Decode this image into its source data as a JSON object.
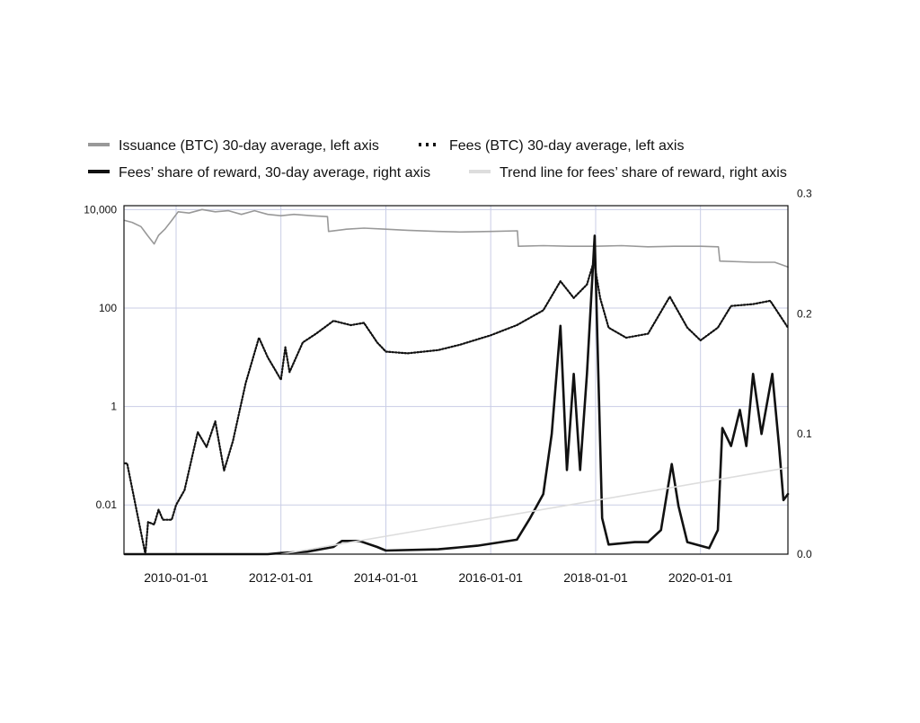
{
  "chart_data": {
    "type": "line",
    "legend": [
      {
        "label": "Issuance (BTC) 30-day average, left axis",
        "color": "#999999",
        "style": "solid"
      },
      {
        "label": "Fees (BTC) 30-day average, left axis",
        "color": "#111111",
        "style": "dotted"
      },
      {
        "label": "Fees’ share of reward, 30-day average, right axis",
        "color": "#111111",
        "style": "solid"
      },
      {
        "label": "Trend line for fees’ share of reward, right axis",
        "color": "#dddddd",
        "style": "solid"
      }
    ],
    "legend_position": "top",
    "x_ticks": [
      "2010-01-01",
      "2012-01-01",
      "2014-01-01",
      "2016-01-01",
      "2018-01-01",
      "2020-01-01"
    ],
    "xlim": [
      "2009-01-03",
      "2021-09-01"
    ],
    "left_axis": {
      "scale": "log",
      "ylim": [
        0.001,
        12000
      ],
      "ticks": [
        10000,
        100,
        1,
        0.01
      ],
      "tick_labels": [
        "10,000",
        "100",
        "1",
        "0.01"
      ]
    },
    "right_axis": {
      "scale": "linear",
      "ylim": [
        0,
        0.29
      ],
      "ticks": [
        0.0,
        0.1,
        0.2,
        0.3
      ],
      "tick_labels": [
        "0.0",
        "0.1",
        "0.2",
        "0.3"
      ]
    },
    "grid": true,
    "series": [
      {
        "name": "Issuance (BTC) 30-day average, left axis",
        "axis": "left",
        "color": "#999999",
        "style": "solid",
        "points": [
          [
            "2009-01-10",
            6000
          ],
          [
            "2009-03-01",
            5500
          ],
          [
            "2009-05-01",
            4500
          ],
          [
            "2009-06-15",
            3000
          ],
          [
            "2009-08-01",
            2000
          ],
          [
            "2009-09-01",
            3000
          ],
          [
            "2009-10-15",
            4000
          ],
          [
            "2009-12-01",
            6000
          ],
          [
            "2010-01-15",
            9000
          ],
          [
            "2010-04-01",
            8500
          ],
          [
            "2010-07-01",
            10000
          ],
          [
            "2010-10-01",
            9000
          ],
          [
            "2011-01-01",
            9500
          ],
          [
            "2011-04-01",
            8000
          ],
          [
            "2011-07-01",
            9500
          ],
          [
            "2011-10-01",
            8000
          ],
          [
            "2012-01-01",
            7500
          ],
          [
            "2012-04-01",
            8000
          ],
          [
            "2012-08-01",
            7500
          ],
          [
            "2012-11-20",
            7200
          ],
          [
            "2012-11-28",
            3600
          ],
          [
            "2013-04-01",
            4000
          ],
          [
            "2013-08-01",
            4200
          ],
          [
            "2014-01-01",
            4000
          ],
          [
            "2014-06-01",
            3800
          ],
          [
            "2015-01-01",
            3600
          ],
          [
            "2015-06-01",
            3500
          ],
          [
            "2016-01-01",
            3600
          ],
          [
            "2016-07-05",
            3700
          ],
          [
            "2016-07-12",
            1800
          ],
          [
            "2017-01-01",
            1850
          ],
          [
            "2017-07-01",
            1800
          ],
          [
            "2018-01-01",
            1800
          ],
          [
            "2018-07-01",
            1850
          ],
          [
            "2019-01-01",
            1750
          ],
          [
            "2019-07-01",
            1800
          ],
          [
            "2020-01-01",
            1800
          ],
          [
            "2020-05-05",
            1750
          ],
          [
            "2020-05-15",
            900
          ],
          [
            "2021-01-01",
            850
          ],
          [
            "2021-06-01",
            850
          ],
          [
            "2021-09-01",
            680
          ]
        ]
      },
      {
        "name": "Fees (BTC) 30-day average, left axis",
        "axis": "left",
        "color": "#111111",
        "style": "dotted",
        "points": [
          [
            "2009-01-10",
            0.07
          ],
          [
            "2009-01-25",
            0.07
          ],
          [
            "2009-06-01",
            0.001
          ],
          [
            "2009-06-20",
            0.0045
          ],
          [
            "2009-08-01",
            0.004
          ],
          [
            "2009-09-01",
            0.008
          ],
          [
            "2009-10-01",
            0.005
          ],
          [
            "2009-12-01",
            0.005
          ],
          [
            "2010-01-01",
            0.01
          ],
          [
            "2010-03-01",
            0.02
          ],
          [
            "2010-06-01",
            0.3
          ],
          [
            "2010-08-01",
            0.15
          ],
          [
            "2010-10-01",
            0.5
          ],
          [
            "2010-12-01",
            0.05
          ],
          [
            "2011-02-01",
            0.2
          ],
          [
            "2011-05-01",
            3
          ],
          [
            "2011-08-01",
            25
          ],
          [
            "2011-10-01",
            10
          ],
          [
            "2012-01-01",
            3.5
          ],
          [
            "2012-02-01",
            16
          ],
          [
            "2012-03-01",
            5
          ],
          [
            "2012-06-01",
            20
          ],
          [
            "2012-09-01",
            30
          ],
          [
            "2013-01-01",
            55
          ],
          [
            "2013-05-01",
            45
          ],
          [
            "2013-08-01",
            50
          ],
          [
            "2013-11-01",
            20
          ],
          [
            "2014-01-01",
            13
          ],
          [
            "2014-06-01",
            12
          ],
          [
            "2015-01-01",
            14
          ],
          [
            "2015-06-01",
            18
          ],
          [
            "2016-01-01",
            28
          ],
          [
            "2016-07-01",
            45
          ],
          [
            "2017-01-01",
            90
          ],
          [
            "2017-05-01",
            350
          ],
          [
            "2017-08-01",
            160
          ],
          [
            "2017-11-01",
            300
          ],
          [
            "2017-12-20",
            900
          ],
          [
            "2018-02-01",
            160
          ],
          [
            "2018-04-01",
            40
          ],
          [
            "2018-08-01",
            25
          ],
          [
            "2019-01-01",
            30
          ],
          [
            "2019-06-01",
            170
          ],
          [
            "2019-10-01",
            40
          ],
          [
            "2020-01-01",
            22
          ],
          [
            "2020-05-01",
            40
          ],
          [
            "2020-08-01",
            110
          ],
          [
            "2021-01-01",
            120
          ],
          [
            "2021-05-01",
            140
          ],
          [
            "2021-09-01",
            40
          ]
        ]
      },
      {
        "name": "Fees’ share of reward, 30-day average, right axis",
        "axis": "right",
        "color": "#111111",
        "style": "solid",
        "points": [
          [
            "2009-01-10",
            0.0
          ],
          [
            "2011-10-01",
            0.0
          ],
          [
            "2012-01-01",
            0.001
          ],
          [
            "2012-07-01",
            0.002
          ],
          [
            "2013-01-01",
            0.006
          ],
          [
            "2013-03-01",
            0.011
          ],
          [
            "2013-07-01",
            0.011
          ],
          [
            "2013-11-01",
            0.006
          ],
          [
            "2014-01-01",
            0.003
          ],
          [
            "2015-01-01",
            0.004
          ],
          [
            "2015-10-01",
            0.007
          ],
          [
            "2016-07-01",
            0.012
          ],
          [
            "2016-10-01",
            0.03
          ],
          [
            "2017-01-01",
            0.05
          ],
          [
            "2017-03-01",
            0.1
          ],
          [
            "2017-05-01",
            0.19
          ],
          [
            "2017-06-15",
            0.07
          ],
          [
            "2017-08-01",
            0.15
          ],
          [
            "2017-09-15",
            0.07
          ],
          [
            "2017-11-01",
            0.15
          ],
          [
            "2017-12-25",
            0.265
          ],
          [
            "2018-02-15",
            0.03
          ],
          [
            "2018-04-01",
            0.008
          ],
          [
            "2018-10-01",
            0.01
          ],
          [
            "2019-01-01",
            0.01
          ],
          [
            "2019-04-01",
            0.02
          ],
          [
            "2019-06-15",
            0.075
          ],
          [
            "2019-08-01",
            0.04
          ],
          [
            "2019-10-01",
            0.01
          ],
          [
            "2020-03-01",
            0.005
          ],
          [
            "2020-05-01",
            0.02
          ],
          [
            "2020-06-01",
            0.105
          ],
          [
            "2020-08-01",
            0.09
          ],
          [
            "2020-10-01",
            0.12
          ],
          [
            "2020-11-15",
            0.09
          ],
          [
            "2021-01-01",
            0.15
          ],
          [
            "2021-03-01",
            0.1
          ],
          [
            "2021-05-15",
            0.15
          ],
          [
            "2021-07-01",
            0.09
          ],
          [
            "2021-08-01",
            0.045
          ],
          [
            "2021-09-01",
            0.05
          ]
        ]
      },
      {
        "name": "Trend line for fees’ share of reward, right axis",
        "axis": "right",
        "color": "#dddddd",
        "style": "solid",
        "points": [
          [
            "2012-01-01",
            0.0
          ],
          [
            "2021-09-01",
            0.072
          ]
        ]
      }
    ]
  }
}
